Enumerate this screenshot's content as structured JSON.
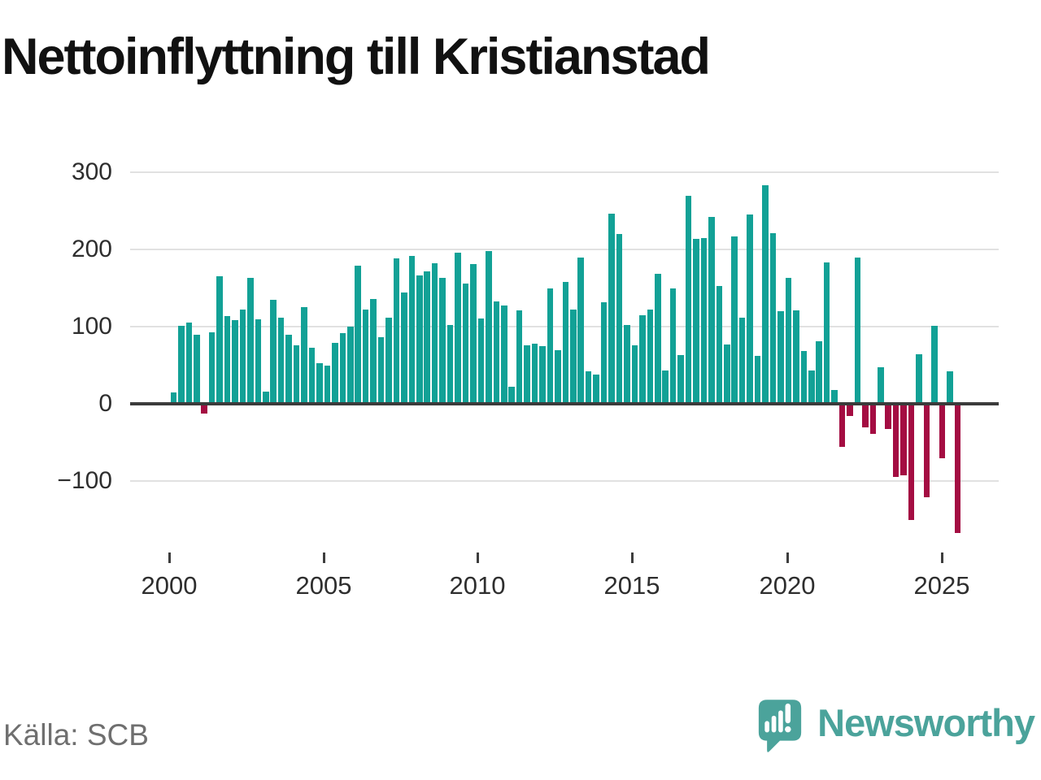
{
  "title": "Nettoinflyttning till Kristianstad",
  "footer": {
    "source": "Källa: SCB",
    "brand": "Newsworthy"
  },
  "colors": {
    "positive": "#12a196",
    "negative": "#a40d42",
    "grid": "#e1e1e1",
    "zero_line": "#3b3b3b",
    "axis_text": "#2e2e2e",
    "title_text": "#111111",
    "source_text": "#6f6f6f",
    "brand_teal": "#4ba39b"
  },
  "chart_data": {
    "type": "bar",
    "title": "Nettoinflyttning till Kristianstad",
    "period": "quarter",
    "start": "2000-Q1",
    "end": "2025-Q3",
    "xlabel": "",
    "ylabel": "",
    "ylim": [
      -180,
      310
    ],
    "grid": true,
    "y_ticks": [
      {
        "label": "300",
        "value": 300
      },
      {
        "label": "200",
        "value": 200
      },
      {
        "label": "100",
        "value": 100
      },
      {
        "label": "0",
        "value": 0
      },
      {
        "label": "−100",
        "value": -100
      }
    ],
    "x_ticks": [
      {
        "label": "2000",
        "year": 2000
      },
      {
        "label": "2005",
        "year": 2005
      },
      {
        "label": "2010",
        "year": 2010
      },
      {
        "label": "2015",
        "year": 2015
      },
      {
        "label": "2020",
        "year": 2020
      },
      {
        "label": "2025",
        "year": 2025
      }
    ],
    "series": [
      {
        "name": "Nettoinflyttning",
        "values": [
          15,
          101,
          105,
          89,
          -13,
          93,
          165,
          114,
          108,
          122,
          163,
          110,
          16,
          135,
          112,
          89,
          76,
          125,
          73,
          53,
          50,
          79,
          92,
          100,
          179,
          122,
          136,
          86,
          112,
          188,
          144,
          192,
          166,
          172,
          182,
          163,
          102,
          196,
          156,
          181,
          111,
          198,
          133,
          127,
          22,
          121,
          76,
          78,
          75,
          150,
          70,
          158,
          122,
          189,
          42,
          38,
          132,
          246,
          220,
          102,
          76,
          115,
          122,
          168,
          43,
          150,
          63,
          270,
          214,
          215,
          242,
          153,
          77,
          217,
          112,
          245,
          62,
          283,
          221,
          120,
          163,
          121,
          68,
          43,
          81,
          183,
          18,
          -56,
          -16,
          190,
          -30,
          -39,
          47,
          -33,
          -95,
          -93,
          -150,
          64,
          -121,
          101,
          -71,
          42,
          -167
        ]
      }
    ]
  }
}
